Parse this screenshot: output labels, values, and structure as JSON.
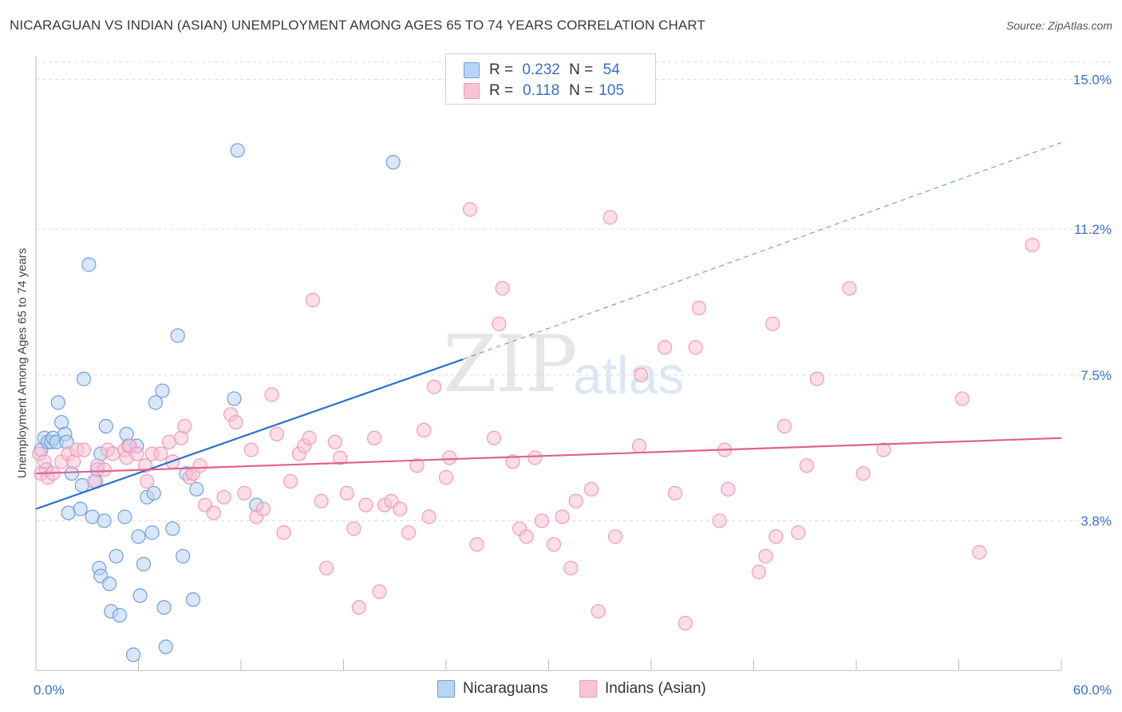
{
  "title": "NICARAGUAN VS INDIAN (ASIAN) UNEMPLOYMENT AMONG AGES 65 TO 74 YEARS CORRELATION CHART",
  "source": "Source: ZipAtlas.com",
  "watermark": {
    "zip": "ZIP",
    "atlas": "atlas"
  },
  "legend_stats": [
    {
      "r_label": "R =",
      "r_value": "0.232",
      "n_label": "N =",
      "n_value": "54",
      "color": "#b9d3f3"
    },
    {
      "r_label": "R =",
      "r_value": "0.118",
      "n_label": "N =",
      "n_value": "105",
      "color": "#f8c3d3"
    }
  ],
  "chart_data": {
    "type": "scatter",
    "title": "NICARAGUAN VS INDIAN (ASIAN) UNEMPLOYMENT AMONG AGES 65 TO 74 YEARS CORRELATION CHART",
    "xlabel": "",
    "ylabel": "Unemployment Among Ages 65 to 74 years",
    "xlim": [
      0,
      60
    ],
    "ylim": [
      0,
      15.6
    ],
    "x_tick_labels": [
      "0.0%",
      "60.0%"
    ],
    "y_ticks": [
      3.8,
      7.5,
      11.2,
      15.0
    ],
    "y_tick_labels": [
      "3.8%",
      "7.5%",
      "11.2%",
      "15.0%"
    ],
    "grid": true,
    "legend_position": "top-center",
    "series": [
      {
        "name": "Nicaraguans",
        "color": "#6f9fe0",
        "fill": "#b9d3f3",
        "trend": {
          "x0": 0,
          "y0": 4.1,
          "x1": 25,
          "y1": 7.9,
          "dash_to_x": 60,
          "dash_to_y": 13.4,
          "color": "#2f6fcf"
        },
        "points": [
          [
            0.3,
            5.6
          ],
          [
            0.5,
            5.9
          ],
          [
            0.6,
            5.1
          ],
          [
            0.7,
            5.8
          ],
          [
            0.9,
            5.8
          ],
          [
            1.0,
            5.9
          ],
          [
            1.2,
            5.8
          ],
          [
            1.3,
            6.8
          ],
          [
            1.5,
            6.3
          ],
          [
            1.7,
            6.0
          ],
          [
            1.8,
            5.8
          ],
          [
            1.9,
            4.0
          ],
          [
            2.1,
            5.0
          ],
          [
            2.6,
            4.1
          ],
          [
            2.7,
            4.7
          ],
          [
            2.8,
            7.4
          ],
          [
            3.1,
            10.3
          ],
          [
            3.3,
            3.9
          ],
          [
            3.5,
            4.8
          ],
          [
            3.6,
            5.1
          ],
          [
            3.8,
            5.5
          ],
          [
            3.7,
            2.6
          ],
          [
            3.8,
            2.4
          ],
          [
            4.0,
            3.8
          ],
          [
            4.1,
            6.2
          ],
          [
            4.3,
            2.2
          ],
          [
            4.4,
            1.5
          ],
          [
            4.7,
            2.9
          ],
          [
            4.9,
            1.4
          ],
          [
            5.2,
            3.9
          ],
          [
            5.3,
            6.0
          ],
          [
            5.4,
            5.7
          ],
          [
            5.7,
            0.4
          ],
          [
            5.9,
            5.7
          ],
          [
            6.0,
            3.4
          ],
          [
            6.1,
            1.9
          ],
          [
            6.3,
            2.7
          ],
          [
            6.5,
            4.4
          ],
          [
            6.8,
            3.5
          ],
          [
            6.9,
            4.5
          ],
          [
            7.0,
            6.8
          ],
          [
            7.4,
            7.1
          ],
          [
            7.5,
            1.6
          ],
          [
            7.6,
            0.6
          ],
          [
            8.0,
            3.6
          ],
          [
            8.3,
            8.5
          ],
          [
            8.6,
            2.9
          ],
          [
            8.8,
            5.0
          ],
          [
            9.2,
            1.8
          ],
          [
            9.4,
            4.6
          ],
          [
            11.6,
            6.9
          ],
          [
            11.8,
            13.2
          ],
          [
            12.9,
            4.2
          ],
          [
            20.9,
            12.9
          ]
        ]
      },
      {
        "name": "Indians (Asian)",
        "color": "#f19bb8",
        "fill": "#f8c3d3",
        "trend": {
          "x0": 0,
          "y0": 5.0,
          "x1": 60,
          "y1": 5.9,
          "color": "#e0628f"
        },
        "points": [
          [
            0.2,
            5.5
          ],
          [
            0.3,
            5.0
          ],
          [
            0.5,
            5.3
          ],
          [
            0.7,
            4.9
          ],
          [
            1.0,
            5.0
          ],
          [
            1.5,
            5.3
          ],
          [
            1.9,
            5.5
          ],
          [
            2.2,
            5.3
          ],
          [
            2.4,
            5.6
          ],
          [
            2.8,
            5.6
          ],
          [
            3.4,
            4.8
          ],
          [
            3.6,
            5.2
          ],
          [
            4.0,
            5.1
          ],
          [
            4.2,
            5.6
          ],
          [
            4.5,
            5.5
          ],
          [
            5.2,
            5.6
          ],
          [
            5.3,
            5.4
          ],
          [
            5.5,
            5.7
          ],
          [
            5.9,
            5.5
          ],
          [
            6.4,
            5.2
          ],
          [
            6.5,
            4.8
          ],
          [
            6.8,
            5.5
          ],
          [
            7.3,
            5.5
          ],
          [
            7.8,
            5.8
          ],
          [
            8.0,
            5.3
          ],
          [
            8.5,
            5.9
          ],
          [
            8.7,
            6.2
          ],
          [
            9.0,
            4.9
          ],
          [
            9.2,
            5.0
          ],
          [
            9.6,
            5.2
          ],
          [
            9.9,
            4.2
          ],
          [
            10.4,
            4.0
          ],
          [
            11.0,
            4.4
          ],
          [
            11.4,
            6.5
          ],
          [
            11.7,
            6.3
          ],
          [
            12.2,
            4.5
          ],
          [
            12.6,
            5.6
          ],
          [
            12.9,
            3.9
          ],
          [
            13.3,
            4.1
          ],
          [
            13.8,
            7.0
          ],
          [
            14.1,
            6.0
          ],
          [
            14.5,
            3.5
          ],
          [
            14.9,
            4.8
          ],
          [
            15.4,
            5.5
          ],
          [
            15.7,
            5.7
          ],
          [
            16.0,
            5.9
          ],
          [
            16.2,
            9.4
          ],
          [
            16.7,
            4.3
          ],
          [
            17.0,
            2.6
          ],
          [
            17.5,
            5.8
          ],
          [
            17.8,
            5.4
          ],
          [
            18.2,
            4.5
          ],
          [
            18.6,
            3.6
          ],
          [
            18.9,
            1.6
          ],
          [
            19.3,
            4.2
          ],
          [
            19.8,
            5.9
          ],
          [
            20.1,
            2.0
          ],
          [
            20.4,
            4.2
          ],
          [
            20.8,
            4.3
          ],
          [
            21.3,
            4.1
          ],
          [
            21.8,
            3.5
          ],
          [
            22.3,
            5.2
          ],
          [
            22.7,
            6.1
          ],
          [
            23.0,
            3.9
          ],
          [
            23.3,
            7.2
          ],
          [
            24.0,
            4.9
          ],
          [
            24.2,
            5.4
          ],
          [
            25.4,
            11.7
          ],
          [
            25.8,
            3.2
          ],
          [
            26.8,
            5.9
          ],
          [
            27.1,
            8.8
          ],
          [
            27.3,
            9.7
          ],
          [
            27.9,
            5.3
          ],
          [
            28.3,
            3.6
          ],
          [
            28.7,
            3.4
          ],
          [
            29.2,
            5.4
          ],
          [
            29.6,
            3.8
          ],
          [
            30.3,
            3.2
          ],
          [
            30.8,
            3.9
          ],
          [
            31.3,
            2.6
          ],
          [
            31.6,
            4.3
          ],
          [
            32.5,
            4.6
          ],
          [
            32.9,
            1.5
          ],
          [
            33.6,
            11.5
          ],
          [
            33.9,
            3.4
          ],
          [
            35.4,
            7.5
          ],
          [
            35.3,
            5.7
          ],
          [
            36.8,
            8.2
          ],
          [
            37.4,
            4.5
          ],
          [
            38.0,
            1.2
          ],
          [
            38.6,
            8.2
          ],
          [
            38.8,
            9.2
          ],
          [
            40.0,
            3.8
          ],
          [
            40.3,
            5.6
          ],
          [
            40.5,
            4.6
          ],
          [
            42.3,
            2.5
          ],
          [
            42.7,
            2.9
          ],
          [
            43.1,
            8.8
          ],
          [
            43.3,
            3.4
          ],
          [
            43.8,
            6.2
          ],
          [
            44.6,
            3.5
          ],
          [
            45.1,
            5.2
          ],
          [
            45.7,
            7.4
          ],
          [
            47.6,
            9.7
          ],
          [
            48.4,
            5.0
          ],
          [
            49.6,
            5.6
          ],
          [
            54.2,
            6.9
          ],
          [
            55.2,
            3.0
          ],
          [
            58.3,
            10.8
          ]
        ]
      }
    ]
  }
}
